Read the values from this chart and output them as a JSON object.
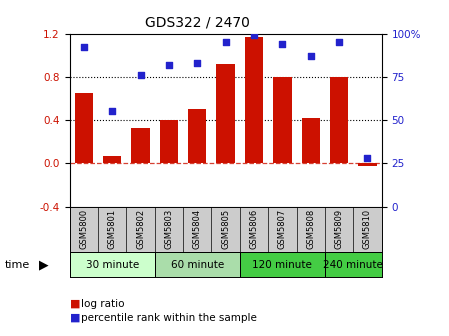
{
  "title": "GDS322 / 2470",
  "samples": [
    "GSM5800",
    "GSM5801",
    "GSM5802",
    "GSM5803",
    "GSM5804",
    "GSM5805",
    "GSM5806",
    "GSM5807",
    "GSM5808",
    "GSM5809",
    "GSM5810"
  ],
  "log_ratio": [
    0.65,
    0.07,
    0.33,
    0.4,
    0.5,
    0.92,
    1.17,
    0.8,
    0.42,
    0.8,
    -0.02
  ],
  "percentile": [
    92,
    55,
    76,
    82,
    83,
    95,
    99,
    94,
    87,
    95,
    28
  ],
  "bar_color": "#cc1100",
  "dot_color": "#2222cc",
  "groups": [
    {
      "label": "30 minute",
      "start": 0,
      "end": 2,
      "color": "#ddffdd"
    },
    {
      "label": "60 minute",
      "start": 3,
      "end": 5,
      "color": "#bbeeaa"
    },
    {
      "label": "120 minute",
      "start": 6,
      "end": 8,
      "color": "#44cc44"
    },
    {
      "label": "240 minute",
      "start": 9,
      "end": 10,
      "color": "#44cc44"
    }
  ],
  "ylim_left": [
    -0.4,
    1.2
  ],
  "ylim_right": [
    0,
    100
  ],
  "yticks_left": [
    -0.4,
    0.0,
    0.4,
    0.8,
    1.2
  ],
  "yticks_right": [
    0,
    25,
    50,
    75,
    100
  ],
  "hlines_dotted": [
    0.4,
    0.8
  ],
  "zero_line_color": "#cc1100",
  "bg_color": "#ffffff",
  "legend_log_label": "log ratio",
  "legend_pct_label": "percentile rank within the sample",
  "time_label": "time",
  "group_colors": [
    "#ccffcc",
    "#aaddaa",
    "#44cc44",
    "#44cc44"
  ]
}
